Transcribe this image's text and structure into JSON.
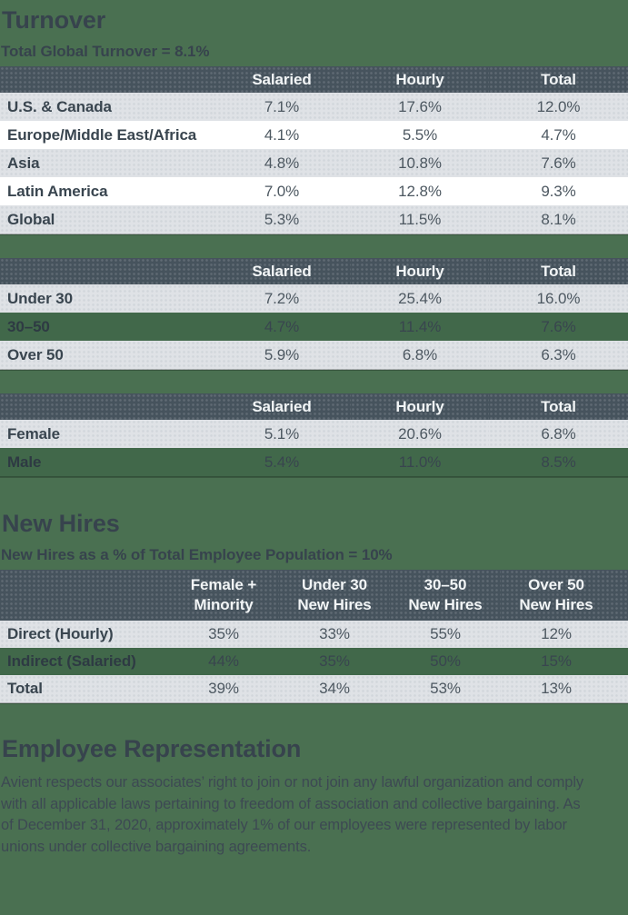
{
  "colors": {
    "page_background": "#4a7051",
    "table_header_background": "#46535d",
    "row_gray": "#dfe2e6",
    "row_white": "#ffffff",
    "row_green": "#41684a",
    "heading_text": "#37434d",
    "header_text": "#f2f5f6"
  },
  "turnover": {
    "title": "Turnover",
    "subtitle": "Total Global Turnover = 8.1%",
    "tables": [
      {
        "name": "turnover-by-region-table",
        "columns": [
          "Salaried",
          "Hourly",
          "Total"
        ],
        "rows": [
          {
            "label": "U.S. & Canada",
            "values": [
              "7.1%",
              "17.6%",
              "12.0%"
            ],
            "bg": "gray"
          },
          {
            "label": "Europe/Middle East/Africa",
            "values": [
              "4.1%",
              "5.5%",
              "4.7%"
            ],
            "bg": "white"
          },
          {
            "label": "Asia",
            "values": [
              "4.8%",
              "10.8%",
              "7.6%"
            ],
            "bg": "gray"
          },
          {
            "label": "Latin America",
            "values": [
              "7.0%",
              "12.8%",
              "9.3%"
            ],
            "bg": "white"
          },
          {
            "label": "Global",
            "values": [
              "5.3%",
              "11.5%",
              "8.1%"
            ],
            "bg": "gray"
          }
        ]
      },
      {
        "name": "turnover-by-age-table",
        "columns": [
          "Salaried",
          "Hourly",
          "Total"
        ],
        "rows": [
          {
            "label": "Under 30",
            "values": [
              "7.2%",
              "25.4%",
              "16.0%"
            ],
            "bg": "gray"
          },
          {
            "label": "30–50",
            "values": [
              "4.7%",
              "11.4%",
              "7.6%"
            ],
            "bg": "green"
          },
          {
            "label": "Over 50",
            "values": [
              "5.9%",
              "6.8%",
              "6.3%"
            ],
            "bg": "gray"
          }
        ]
      },
      {
        "name": "turnover-by-gender-table",
        "columns": [
          "Salaried",
          "Hourly",
          "Total"
        ],
        "rows": [
          {
            "label": "Female",
            "values": [
              "5.1%",
              "20.6%",
              "6.8%"
            ],
            "bg": "gray"
          },
          {
            "label": "Male",
            "values": [
              "5.4%",
              "11.0%",
              "8.5%"
            ],
            "bg": "green"
          }
        ]
      }
    ]
  },
  "new_hires": {
    "title": "New Hires",
    "subtitle": "New Hires as a % of Total Employee Population = 10%",
    "table": {
      "name": "new-hires-table",
      "columns": [
        [
          "Female +",
          "Minority"
        ],
        [
          "Under 30",
          "New Hires"
        ],
        [
          "30–50",
          "New Hires"
        ],
        [
          "Over 50",
          "New Hires"
        ]
      ],
      "rows": [
        {
          "label": "Direct (Hourly)",
          "values": [
            "35%",
            "33%",
            "55%",
            "12%"
          ],
          "bg": "gray"
        },
        {
          "label": "Indirect (Salaried)",
          "values": [
            "44%",
            "35%",
            "50%",
            "15%"
          ],
          "bg": "green"
        },
        {
          "label": "Total",
          "values": [
            "39%",
            "34%",
            "53%",
            "13%"
          ],
          "bg": "gray"
        }
      ]
    }
  },
  "employee_representation": {
    "title": "Employee Representation",
    "body": "Avient respects our associates’ right to join or not join any lawful organization and comply with all applicable laws pertaining to freedom of association and collective bargaining. As of December 31, 2020, approximately 1% of our employees were represented by labor unions under collective bargaining agreements."
  }
}
